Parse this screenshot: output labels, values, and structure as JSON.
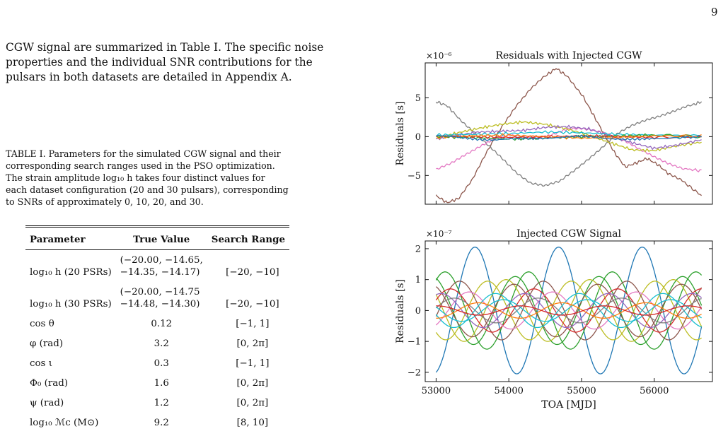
{
  "page": {
    "number": "9"
  },
  "paragraph": {
    "lines": [
      "CGW signal are summarized in Table I. The specific noise",
      "properties and the individual SNR contributions for the",
      "pulsars in both datasets are detailed in Appendix A."
    ]
  },
  "caption": {
    "lines": [
      "TABLE I. Parameters for the simulated CGW signal and their",
      "corresponding search ranges used in the PSO optimization.",
      "The strain amplitude log₁₀ h takes four distinct values for",
      "each dataset configuration (20 and 30 pulsars), corresponding",
      "to SNRs of approximately 0, 10, 20, and 30."
    ]
  },
  "table": {
    "headers": [
      "Parameter",
      "True Value",
      "Search Range"
    ],
    "rows": [
      {
        "param": "log₁₀ h (20 PSRs)",
        "value_line1": "(−20.00, −14.65,",
        "value_line2": "−14.35, −14.17)",
        "range": "[−20, −10]"
      },
      {
        "param": "log₁₀ h (30 PSRs)",
        "value_line1": "(−20.00, −14.75",
        "value_line2": "−14.48, −14.30)",
        "range": "[−20, −10]"
      },
      {
        "param": "cos θ",
        "value": "0.12",
        "range": "[−1, 1]"
      },
      {
        "param": "φ (rad)",
        "value": "3.2",
        "range": "[0, 2π]"
      },
      {
        "param": "cos ι",
        "value": "0.3",
        "range": "[−1, 1]"
      },
      {
        "param": "Φ₀ (rad)",
        "value": "1.6",
        "range": "[0, 2π]"
      },
      {
        "param": "ψ (rad)",
        "value": "1.2",
        "range": "[0, 2π]"
      },
      {
        "param": "log₁₀ ℳc (M⊙)",
        "value": "9.2",
        "range": "[8, 10]"
      }
    ]
  },
  "chart_data": [
    {
      "type": "line",
      "title": "Residuals with Injected CGW",
      "ylabel": "Residuals [s]",
      "xlabel": "",
      "scale_label": "×10⁻⁶",
      "xlim": [
        52850,
        56800
      ],
      "ylim": [
        -8.7,
        9.5
      ],
      "yticks": [
        -5,
        0,
        5
      ],
      "ytick_labels": [
        "−5",
        "0",
        "5"
      ],
      "grid": false,
      "series": [
        {
          "color": "#8c564b",
          "x": [
            53000,
            53150,
            53300,
            53500,
            53700,
            53900,
            54100,
            54300,
            54500,
            54650,
            54800,
            55000,
            55150,
            55300,
            55450,
            55600,
            55750,
            55900,
            56050,
            56200,
            56400,
            56650
          ],
          "y": [
            -7.6,
            -8.5,
            -8.0,
            -5.5,
            -2.0,
            1.2,
            4.0,
            6.2,
            7.8,
            8.8,
            7.8,
            5.5,
            3.0,
            0.5,
            -2.0,
            -3.9,
            -3.4,
            -2.8,
            -3.6,
            -4.8,
            -5.8,
            -7.6
          ]
        },
        {
          "color": "#7f7f7f",
          "x": [
            53000,
            53150,
            53300,
            53500,
            53700,
            53900,
            54100,
            54300,
            54500,
            54700,
            54900,
            55100,
            55300,
            55500,
            55700,
            55900,
            56100,
            56300,
            56500,
            56650
          ],
          "y": [
            4.5,
            4.0,
            2.5,
            0.8,
            -1.0,
            -2.8,
            -4.6,
            -5.9,
            -6.3,
            -5.8,
            -4.4,
            -2.8,
            -1.2,
            0.4,
            1.4,
            2.2,
            2.8,
            3.4,
            4.0,
            4.5
          ]
        },
        {
          "color": "#e377c2",
          "x": [
            53000,
            53200,
            53400,
            53600,
            53800,
            54000,
            54200,
            54400,
            54600,
            54800,
            55000,
            55200,
            55400,
            55600,
            55800,
            56000,
            56200,
            56400,
            56650
          ],
          "y": [
            -4.3,
            -3.5,
            -2.3,
            -1.2,
            -0.3,
            0.1,
            0.0,
            -0.1,
            0.3,
            0.9,
            1.0,
            0.8,
            0.3,
            -0.6,
            -1.7,
            -2.6,
            -3.4,
            -4.1,
            -4.4
          ]
        },
        {
          "color": "#bcbd22",
          "x": [
            53000,
            53300,
            53600,
            53900,
            54200,
            54500,
            54800,
            55100,
            55400,
            55700,
            56000,
            56300,
            56650
          ],
          "y": [
            -0.2,
            0.5,
            1.1,
            1.6,
            1.9,
            1.6,
            1.0,
            0.2,
            -0.8,
            -1.7,
            -1.8,
            -1.2,
            -0.7
          ]
        },
        {
          "color": "#9467bd",
          "x": [
            53000,
            53300,
            53600,
            53900,
            54200,
            54500,
            54800,
            55100,
            55400,
            55700,
            56000,
            56300,
            56650
          ],
          "y": [
            -0.3,
            0.2,
            0.6,
            0.7,
            0.8,
            1.2,
            1.3,
            1.0,
            0.1,
            -0.8,
            -1.5,
            -1.1,
            -0.4
          ]
        },
        {
          "color": "#17becf",
          "x": [
            53000,
            53500,
            54000,
            54500,
            55000,
            55500,
            56000,
            56650
          ],
          "y": [
            0.2,
            0.3,
            0.4,
            0.6,
            0.5,
            0.3,
            0.2,
            0.1
          ]
        },
        {
          "color": "#2ca02c",
          "x": [
            53000,
            53500,
            54000,
            54500,
            55000,
            55500,
            56000,
            56650
          ],
          "y": [
            0.0,
            -0.1,
            -0.3,
            -0.2,
            0.0,
            0.1,
            0.2,
            0.0
          ]
        },
        {
          "color": "#d62728",
          "x": [
            53000,
            53500,
            54000,
            54500,
            55000,
            55500,
            56000,
            56650
          ],
          "y": [
            0.1,
            0.0,
            -0.1,
            0.0,
            0.1,
            0.0,
            -0.1,
            0.0
          ]
        },
        {
          "color": "#ff7f0e",
          "x": [
            53000,
            53500,
            54000,
            54500,
            55000,
            55500,
            56000,
            56650
          ],
          "y": [
            -0.1,
            0.1,
            0.2,
            0.0,
            -0.2,
            -0.1,
            0.1,
            0.1
          ]
        },
        {
          "color": "#1f77b4",
          "x": [
            53000,
            53400,
            53800,
            54200,
            54600,
            55000,
            55400,
            55800,
            56200,
            56650
          ],
          "y": [
            0.1,
            -0.2,
            -0.4,
            -0.3,
            -0.1,
            0.0,
            -0.2,
            -0.4,
            -0.2,
            0.0
          ]
        }
      ]
    },
    {
      "type": "line",
      "title": "Injected CGW Signal",
      "ylabel": "Residuals [s]",
      "xlabel": "TOA [MJD]",
      "scale_label": "×10⁻⁷",
      "xlim": [
        52850,
        56800
      ],
      "ylim": [
        -2.3,
        2.25
      ],
      "xticks": [
        53000,
        54000,
        55000,
        56000
      ],
      "xtick_labels": [
        "53000",
        "54000",
        "55000",
        "56000"
      ],
      "yticks": [
        -2,
        -1,
        0,
        1,
        2
      ],
      "ytick_labels": [
        "−2",
        "−1",
        "0",
        "1",
        "2"
      ],
      "grid": false,
      "sinusoid_period_days": 1150,
      "series": [
        {
          "color": "#1f77b4",
          "amplitude": 2.05,
          "phase": -1.35,
          "offset": 0.0
        },
        {
          "color": "#2ca02c",
          "amplitude": 1.25,
          "phase": 0.9,
          "offset": 0.0
        },
        {
          "color": "#2ca02c",
          "amplitude": 1.1,
          "phase": 1.9,
          "offset": 0.0
        },
        {
          "color": "#bcbd22",
          "amplitude": 1.0,
          "phase": 2.6,
          "offset": 0.0
        },
        {
          "color": "#bcbd22",
          "amplitude": 0.95,
          "phase": -2.3,
          "offset": 0.0
        },
        {
          "color": "#8c564b",
          "amplitude": 0.95,
          "phase": -0.2,
          "offset": 0.0
        },
        {
          "color": "#8c564b",
          "amplitude": 0.85,
          "phase": 2.0,
          "offset": 0.0
        },
        {
          "color": "#d62728",
          "amplitude": 0.7,
          "phase": 0.5,
          "offset": 0.0
        },
        {
          "color": "#e377c2",
          "amplitude": 0.6,
          "phase": -0.9,
          "offset": 0.0
        },
        {
          "color": "#9467bd",
          "amplitude": 0.55,
          "phase": 1.2,
          "offset": 0.0
        },
        {
          "color": "#17becf",
          "amplitude": 0.55,
          "phase": -2.9,
          "offset": 0.0
        },
        {
          "color": "#7f7f7f",
          "amplitude": 0.4,
          "phase": 0.2,
          "offset": 0.0
        },
        {
          "color": "#17becf",
          "amplitude": 0.35,
          "phase": 2.8,
          "offset": 0.0
        },
        {
          "color": "#ff7f0e",
          "amplitude": 0.25,
          "phase": -1.6,
          "offset": 0.0
        },
        {
          "color": "#d62728",
          "amplitude": 0.15,
          "phase": 1.5,
          "offset": 0.0
        }
      ]
    }
  ]
}
